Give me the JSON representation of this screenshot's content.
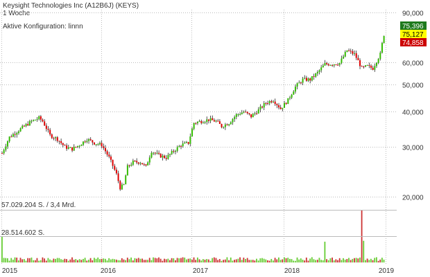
{
  "header": {
    "title": "Keysight Technologies Inc (A12B6J) (KEYS)",
    "interval": "1 Woche",
    "config": "Aktive Konfiguration: linnn"
  },
  "price_tags": [
    {
      "value": "75,396",
      "bg": "#1e7a1e",
      "fg": "#ffffff"
    },
    {
      "value": "75,127",
      "bg": "#ffff00",
      "fg": "#000000"
    },
    {
      "value": "74,858",
      "bg": "#cc0000",
      "fg": "#ffffff"
    }
  ],
  "volume_labels": {
    "max": "57.029.204 S. / 3,4 Mrd.",
    "mid": "28.514.602 S."
  },
  "colors": {
    "up": "#33bb00",
    "down": "#dd0000",
    "wick": "#222222",
    "grid": "#bbbbbb"
  },
  "chart_data": {
    "type": "candlestick",
    "scale": "log",
    "interval": "weekly",
    "ylim": [
      19000,
      92000
    ],
    "y_ticks": [
      {
        "value": 90000,
        "label": "90,000"
      },
      {
        "value": 60000,
        "label": "60,000"
      },
      {
        "value": 50000,
        "label": "50,000"
      },
      {
        "value": 40000,
        "label": "40,000"
      },
      {
        "value": 30000,
        "label": "30,000"
      },
      {
        "value": 20000,
        "label": "20,000"
      }
    ],
    "x_ticks": [
      "2015",
      "2016",
      "2017",
      "2018",
      "2019"
    ],
    "close_anchors": [
      [
        0,
        28.5
      ],
      [
        4,
        32.5
      ],
      [
        8,
        34
      ],
      [
        12,
        35.5
      ],
      [
        16,
        37
      ],
      [
        20,
        38
      ],
      [
        22,
        37
      ],
      [
        26,
        33
      ],
      [
        30,
        32
      ],
      [
        34,
        30
      ],
      [
        38,
        29.5
      ],
      [
        42,
        30.5
      ],
      [
        46,
        32
      ],
      [
        50,
        31
      ],
      [
        54,
        30.5
      ],
      [
        58,
        27.5
      ],
      [
        62,
        24
      ],
      [
        64,
        21.5
      ],
      [
        66,
        22
      ],
      [
        68,
        25.5
      ],
      [
        71,
        26.5
      ],
      [
        75,
        26.5
      ],
      [
        78,
        25.5
      ],
      [
        81,
        29
      ],
      [
        85,
        28
      ],
      [
        89,
        27.5
      ],
      [
        93,
        29
      ],
      [
        97,
        30.5
      ],
      [
        101,
        31
      ],
      [
        104,
        36.5
      ],
      [
        108,
        37
      ],
      [
        112,
        37.5
      ],
      [
        116,
        37
      ],
      [
        119,
        35.5
      ],
      [
        123,
        36.5
      ],
      [
        127,
        39
      ],
      [
        131,
        40
      ],
      [
        135,
        38.5
      ],
      [
        139,
        40.5
      ],
      [
        143,
        43
      ],
      [
        147,
        44
      ],
      [
        151,
        41
      ],
      [
        155,
        44
      ],
      [
        159,
        49
      ],
      [
        163,
        52
      ],
      [
        167,
        52
      ],
      [
        171,
        55
      ],
      [
        175,
        59
      ],
      [
        179,
        59
      ],
      [
        183,
        59.5
      ],
      [
        187,
        66
      ],
      [
        191,
        64
      ],
      [
        195,
        57
      ],
      [
        198,
        58
      ],
      [
        201,
        57
      ],
      [
        205,
        64
      ],
      [
        207,
        75.1
      ]
    ],
    "volume_max": 57029204,
    "volume_spikes": [
      {
        "week": 0,
        "volume": 28514602
      },
      {
        "week": 175,
        "volume": 22500000
      },
      {
        "week": 195,
        "volume": 57029204
      },
      {
        "week": 196,
        "volume": 23500000
      }
    ]
  }
}
